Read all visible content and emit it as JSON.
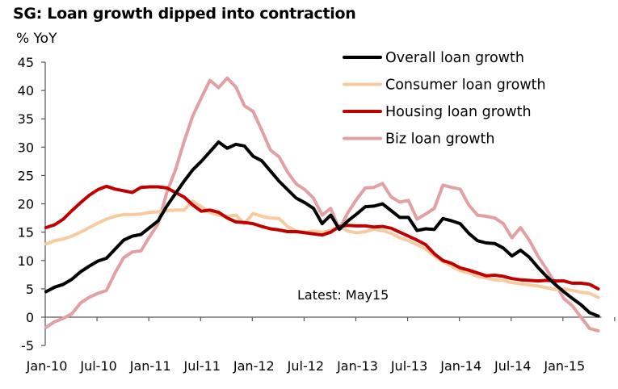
{
  "chart_data": {
    "type": "line",
    "title": "SG: Loan growth dipped into contraction",
    "ylabel": "% YoY",
    "xlabel": "",
    "ylim": [
      -5,
      45
    ],
    "yticks": [
      -5,
      0,
      5,
      10,
      15,
      20,
      25,
      30,
      35,
      40,
      45
    ],
    "xtick_labels": [
      "Jan-10",
      "Jul-10",
      "Jan-11",
      "Jul-11",
      "Jan-12",
      "Jul-12",
      "Jan-13",
      "Jul-13",
      "Jan-14",
      "Jul-14",
      "Jan-15"
    ],
    "xtick_step_months": 6,
    "x_start": "Jan-10",
    "x_end": "May-15",
    "grid": false,
    "legend_position": "top-right",
    "annotation": "Latest: May15",
    "series": [
      {
        "name": "Overall loan growth",
        "color": "#000000",
        "values": [
          4.5,
          5.3,
          5.8,
          6.7,
          8.0,
          9.0,
          9.9,
          10.4,
          12.0,
          13.6,
          14.3,
          14.6,
          15.8,
          17.0,
          19.6,
          21.8,
          24.0,
          26.0,
          27.5,
          29.2,
          30.9,
          29.8,
          30.5,
          30.2,
          28.4,
          27.6,
          25.8,
          24.0,
          22.5,
          21.0,
          20.2,
          19.2,
          16.5,
          18.0,
          15.5,
          17.0,
          18.2,
          19.5,
          19.6,
          20.0,
          18.8,
          17.6,
          17.6,
          15.3,
          15.6,
          15.5,
          17.4,
          17.0,
          16.5,
          14.8,
          13.5,
          13.1,
          13.0,
          12.2,
          10.8,
          11.8,
          10.6,
          8.8,
          7.2,
          5.8,
          4.5,
          3.3,
          2.2,
          0.8,
          0.2
        ]
      },
      {
        "name": "Consumer loan growth",
        "color": "#F7CBA0",
        "values": [
          12.9,
          13.5,
          13.8,
          14.3,
          15.0,
          15.8,
          16.6,
          17.3,
          17.8,
          18.1,
          18.1,
          18.2,
          18.5,
          18.6,
          18.8,
          18.9,
          18.9,
          20.5,
          19.5,
          18.5,
          18.0,
          17.8,
          18.0,
          16.5,
          18.3,
          17.8,
          17.5,
          17.4,
          16.0,
          15.2,
          15.0,
          15.2,
          15.0,
          15.3,
          16.0,
          15.2,
          14.9,
          15.1,
          15.5,
          15.3,
          14.8,
          14.0,
          13.5,
          12.8,
          12.0,
          10.8,
          9.8,
          9.0,
          8.2,
          7.8,
          7.2,
          6.9,
          6.6,
          6.5,
          6.1,
          5.9,
          5.7,
          5.5,
          5.2,
          4.9,
          5.0,
          4.7,
          4.4,
          4.2,
          3.5
        ]
      },
      {
        "name": "Housing loan growth",
        "color": "#C00000",
        "values": [
          15.8,
          16.3,
          17.3,
          18.8,
          20.2,
          21.5,
          22.5,
          23.1,
          22.6,
          22.3,
          22.0,
          22.9,
          23.0,
          23.0,
          22.8,
          22.0,
          21.2,
          19.8,
          18.7,
          18.9,
          18.5,
          17.5,
          16.8,
          16.7,
          16.5,
          16.0,
          15.6,
          15.4,
          15.1,
          15.1,
          14.9,
          14.7,
          14.5,
          15.0,
          16.0,
          16.2,
          16.1,
          16.1,
          15.9,
          16.0,
          15.7,
          15.0,
          14.3,
          13.6,
          12.8,
          11.2,
          10.0,
          9.5,
          8.7,
          8.3,
          7.8,
          7.3,
          7.4,
          7.2,
          6.8,
          6.6,
          6.5,
          6.4,
          6.5,
          6.4,
          6.4,
          6.0,
          6.0,
          5.8,
          5.0
        ]
      },
      {
        "name": "Biz loan growth",
        "color": "#E3A0A4",
        "values": [
          -1.8,
          -0.8,
          -0.2,
          0.6,
          2.5,
          3.5,
          4.2,
          4.7,
          7.8,
          10.5,
          11.5,
          11.7,
          14.2,
          16.5,
          22.0,
          26.0,
          31.0,
          35.5,
          38.7,
          41.8,
          40.5,
          42.2,
          40.6,
          37.3,
          36.3,
          33.0,
          29.5,
          28.3,
          25.6,
          23.5,
          22.5,
          21.0,
          18.0,
          19.2,
          15.5,
          18.5,
          20.8,
          22.8,
          22.9,
          23.6,
          21.2,
          20.3,
          20.6,
          17.3,
          18.2,
          19.2,
          23.3,
          22.9,
          22.6,
          19.8,
          18.0,
          17.8,
          17.5,
          16.5,
          14.0,
          15.8,
          13.6,
          10.8,
          8.5,
          6.0,
          3.3,
          2.0,
          0.0,
          -2.0,
          -2.4
        ]
      }
    ]
  }
}
